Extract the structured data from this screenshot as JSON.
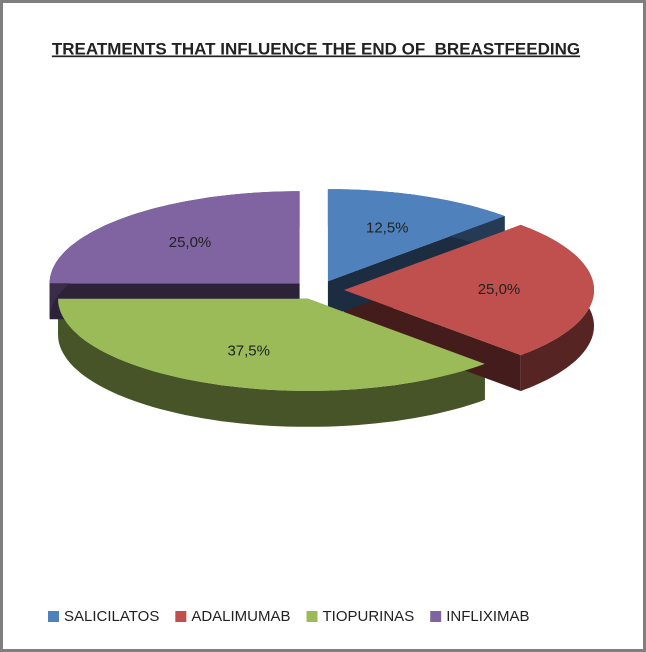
{
  "chart_data": {
    "type": "pie3d",
    "title": "TREATMENTS THAT INFLUENCE THE END OF  BREASTFEEDING",
    "categories": [
      "SALICILATOS",
      "ADALIMUMAB",
      "TIOPURINAS",
      "INFLIXIMAB"
    ],
    "values": [
      12.5,
      25,
      37.5,
      25
    ],
    "value_labels": [
      "12,5%",
      "25,0%",
      "37,5%",
      "25,0%"
    ],
    "colors": [
      "#4f81bd",
      "#c0504d",
      "#9bbb59",
      "#8064a2"
    ]
  }
}
